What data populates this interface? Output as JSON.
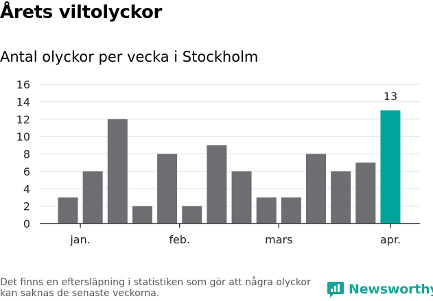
{
  "title": "Årets viltolyckor",
  "subtitle": "Antal olyckor per vecka i Stockholm",
  "footnote": "Det finns en eftersläpning i statistiken som gör att några olyckor kan saknas de senaste veckorna.",
  "brand": {
    "name": "Newsworthy",
    "icon": "newsworthy-chart-logo-icon",
    "color": "#16a596"
  },
  "colors": {
    "bar": "#6e6d72",
    "highlight": "#00a49a",
    "grid": "#dddddd"
  },
  "chart_data": {
    "type": "bar",
    "title": "Antal olyckor per vecka i Stockholm",
    "xlabel": "",
    "ylabel": "",
    "ylim": [
      0,
      16
    ],
    "yticks": [
      0,
      2,
      4,
      6,
      8,
      10,
      12,
      14,
      16
    ],
    "grid": true,
    "legend": "none",
    "values": [
      3,
      6,
      12,
      2,
      8,
      2,
      9,
      6,
      3,
      3,
      8,
      6,
      7,
      13
    ],
    "month_labels": [
      {
        "label": "jan.",
        "bar_index": 0.5
      },
      {
        "label": "feb.",
        "bar_index": 4.5
      },
      {
        "label": "mars",
        "bar_index": 8.5
      },
      {
        "label": "apr.",
        "bar_index": 13
      }
    ],
    "highlight_index": 13,
    "data_labels": [
      {
        "bar_index": 13,
        "text": "13"
      }
    ]
  }
}
